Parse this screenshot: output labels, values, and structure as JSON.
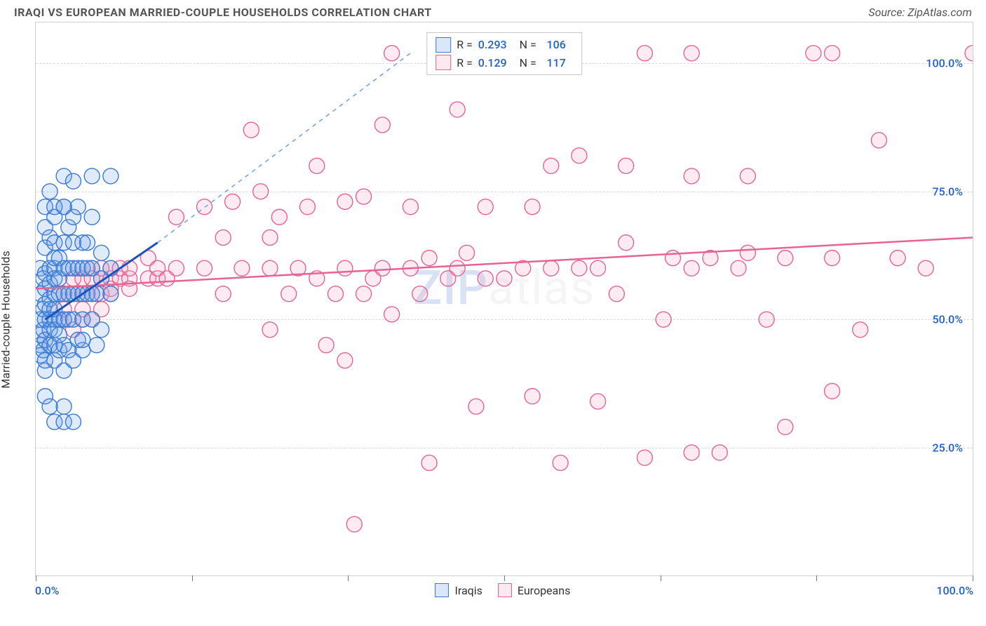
{
  "title": "IRAQI VS EUROPEAN MARRIED-COUPLE HOUSEHOLDS CORRELATION CHART",
  "source_label": "Source: ZipAtlas.com",
  "ylabel": "Married-couple Households",
  "watermark": {
    "prefix": "ZIP",
    "suffix": "atlas"
  },
  "chart": {
    "type": "scatter",
    "xlim": [
      0,
      100
    ],
    "ylim": [
      0,
      108
    ],
    "y_ticks": [
      25,
      50,
      75,
      100
    ],
    "y_tick_labels": [
      "25.0%",
      "50.0%",
      "75.0%",
      "100.0%"
    ],
    "x_ticks": [
      0,
      16.7,
      33.3,
      50,
      66.7,
      83.3,
      100
    ],
    "x_min_label": "0.0%",
    "x_max_label": "100.0%",
    "grid_color": "#d8d8d8",
    "border_color": "#d0d0d0",
    "background_color": "#ffffff",
    "marker_radius": 11,
    "marker_stroke_width": 1.4,
    "marker_fill_opacity": 0.22,
    "y_tick_color": "#2261c9",
    "x_label_color": "#2261c9"
  },
  "series": {
    "iraqis": {
      "label": "Iraqis",
      "color_stroke": "#3a7bd5",
      "color_fill": "#6fa0e8",
      "R": "0.293",
      "N": "106",
      "regression": {
        "x1": 1,
        "y1": 50,
        "x2": 13,
        "y2": 65,
        "dash_x2": 40,
        "dash_y2": 102
      },
      "points": [
        [
          0.5,
          47
        ],
        [
          0.5,
          50
        ],
        [
          0.5,
          55
        ],
        [
          0.5,
          60
        ],
        [
          0.5,
          45
        ],
        [
          0.5,
          43
        ],
        [
          0.8,
          52
        ],
        [
          0.8,
          58
        ],
        [
          0.8,
          48
        ],
        [
          0.8,
          44
        ],
        [
          1,
          50
        ],
        [
          1,
          53
        ],
        [
          1,
          56
        ],
        [
          1,
          59
        ],
        [
          1,
          46
        ],
        [
          1,
          40
        ],
        [
          1,
          64
        ],
        [
          1,
          68
        ],
        [
          1,
          35
        ],
        [
          1,
          42
        ],
        [
          1.5,
          50
        ],
        [
          1.5,
          54
        ],
        [
          1.5,
          57
        ],
        [
          1.5,
          60
        ],
        [
          1.5,
          45
        ],
        [
          1.5,
          52
        ],
        [
          1.5,
          48
        ],
        [
          1.5,
          66
        ],
        [
          2,
          50
        ],
        [
          2,
          55
        ],
        [
          2,
          60
        ],
        [
          2,
          65
        ],
        [
          2,
          48
        ],
        [
          2,
          45
        ],
        [
          2,
          70
        ],
        [
          2,
          58
        ],
        [
          2,
          52
        ],
        [
          2,
          42
        ],
        [
          2,
          62
        ],
        [
          2.5,
          55
        ],
        [
          2.5,
          50
        ],
        [
          2.5,
          58
        ],
        [
          2.5,
          62
        ],
        [
          2.5,
          44
        ],
        [
          2.5,
          47
        ],
        [
          3,
          50
        ],
        [
          3,
          55
        ],
        [
          3,
          60
        ],
        [
          3,
          65
        ],
        [
          3,
          72
        ],
        [
          3,
          40
        ],
        [
          3,
          33
        ],
        [
          3,
          45
        ],
        [
          3,
          78
        ],
        [
          3.5,
          55
        ],
        [
          3.5,
          60
        ],
        [
          3.5,
          50
        ],
        [
          3.5,
          68
        ],
        [
          3.5,
          44
        ],
        [
          4,
          55
        ],
        [
          4,
          60
        ],
        [
          4,
          50
        ],
        [
          4,
          65
        ],
        [
          4,
          70
        ],
        [
          4,
          42
        ],
        [
          4,
          77
        ],
        [
          4.5,
          55
        ],
        [
          4.5,
          60
        ],
        [
          4.5,
          72
        ],
        [
          4.5,
          46
        ],
        [
          5,
          55
        ],
        [
          5,
          60
        ],
        [
          5,
          65
        ],
        [
          5,
          50
        ],
        [
          5,
          44
        ],
        [
          5,
          46
        ],
        [
          5.5,
          60
        ],
        [
          5.5,
          55
        ],
        [
          5.5,
          65
        ],
        [
          6,
          60
        ],
        [
          6,
          55
        ],
        [
          6,
          70
        ],
        [
          6,
          50
        ],
        [
          6,
          78
        ],
        [
          6.5,
          55
        ],
        [
          6.5,
          45
        ],
        [
          7,
          58
        ],
        [
          7,
          63
        ],
        [
          7,
          48
        ],
        [
          8,
          60
        ],
        [
          8,
          55
        ],
        [
          8,
          78
        ],
        [
          2,
          30
        ],
        [
          3,
          30
        ],
        [
          4,
          30
        ],
        [
          1.5,
          33
        ],
        [
          1,
          72
        ],
        [
          2,
          72
        ],
        [
          3,
          72
        ],
        [
          1.5,
          75
        ]
      ]
    },
    "europeans": {
      "label": "Europeans",
      "color_stroke": "#e66395",
      "color_fill": "#f4a5c0",
      "R": "0.129",
      "N": "117",
      "regression": {
        "x1": 0,
        "y1": 56,
        "x2": 100,
        "y2": 66
      },
      "points": [
        [
          3,
          55
        ],
        [
          3,
          50
        ],
        [
          3,
          52
        ],
        [
          4,
          55
        ],
        [
          4,
          58
        ],
        [
          4,
          48
        ],
        [
          5,
          55
        ],
        [
          5,
          50
        ],
        [
          5,
          58
        ],
        [
          5,
          52
        ],
        [
          6,
          55
        ],
        [
          6,
          58
        ],
        [
          6,
          50
        ],
        [
          6,
          60
        ],
        [
          7,
          58
        ],
        [
          7,
          55
        ],
        [
          7,
          60
        ],
        [
          7,
          52
        ],
        [
          8,
          58
        ],
        [
          8,
          56
        ],
        [
          8,
          60
        ],
        [
          8,
          55
        ],
        [
          9,
          58
        ],
        [
          9,
          60
        ],
        [
          10,
          58
        ],
        [
          10,
          56
        ],
        [
          10,
          60
        ],
        [
          12,
          58
        ],
        [
          12,
          62
        ],
        [
          13,
          58
        ],
        [
          13,
          60
        ],
        [
          14,
          58
        ],
        [
          15,
          60
        ],
        [
          15,
          70
        ],
        [
          18,
          60
        ],
        [
          18,
          72
        ],
        [
          20,
          55
        ],
        [
          20,
          66
        ],
        [
          21,
          73
        ],
        [
          22,
          60
        ],
        [
          23,
          87
        ],
        [
          24,
          75
        ],
        [
          25,
          48
        ],
        [
          25,
          60
        ],
        [
          25,
          66
        ],
        [
          26,
          70
        ],
        [
          27,
          55
        ],
        [
          28,
          60
        ],
        [
          29,
          72
        ],
        [
          30,
          58
        ],
        [
          30,
          80
        ],
        [
          31,
          45
        ],
        [
          32,
          55
        ],
        [
          33,
          42
        ],
        [
          33,
          60
        ],
        [
          33,
          73
        ],
        [
          34,
          10
        ],
        [
          35,
          55
        ],
        [
          35,
          74
        ],
        [
          36,
          58
        ],
        [
          37,
          60
        ],
        [
          37,
          88
        ],
        [
          38,
          51
        ],
        [
          40,
          60
        ],
        [
          40,
          72
        ],
        [
          41,
          55
        ],
        [
          42,
          22
        ],
        [
          42,
          62
        ],
        [
          44,
          58
        ],
        [
          45,
          91
        ],
        [
          45,
          60
        ],
        [
          46,
          63
        ],
        [
          47,
          33
        ],
        [
          48,
          58
        ],
        [
          48,
          72
        ],
        [
          50,
          58
        ],
        [
          50,
          102
        ],
        [
          52,
          60
        ],
        [
          53,
          35
        ],
        [
          53,
          72
        ],
        [
          55,
          60
        ],
        [
          55,
          80
        ],
        [
          56,
          22
        ],
        [
          58,
          60
        ],
        [
          58,
          82
        ],
        [
          60,
          34
        ],
        [
          60,
          60
        ],
        [
          62,
          55
        ],
        [
          63,
          65
        ],
        [
          63,
          80
        ],
        [
          65,
          23
        ],
        [
          67,
          50
        ],
        [
          68,
          62
        ],
        [
          70,
          24
        ],
        [
          70,
          60
        ],
        [
          70,
          78
        ],
        [
          72,
          62
        ],
        [
          73,
          24
        ],
        [
          75,
          60
        ],
        [
          76,
          63
        ],
        [
          76,
          78
        ],
        [
          78,
          50
        ],
        [
          80,
          62
        ],
        [
          80,
          29
        ],
        [
          83,
          102
        ],
        [
          85,
          36
        ],
        [
          85,
          62
        ],
        [
          88,
          48
        ],
        [
          90,
          85
        ],
        [
          92,
          62
        ],
        [
          95,
          60
        ],
        [
          85,
          102
        ],
        [
          100,
          102
        ],
        [
          47,
          102
        ],
        [
          38,
          102
        ],
        [
          65,
          102
        ],
        [
          70,
          102
        ]
      ]
    }
  },
  "stats_box": {
    "rows": [
      {
        "swatch": "iraqis",
        "r_label": "R =",
        "r": "0.293",
        "n_label": "N =",
        "n": "106"
      },
      {
        "swatch": "europeans",
        "r_label": "R =",
        "r": "0.129",
        "n_label": "N =",
        "n": "117"
      }
    ]
  },
  "legend": [
    {
      "key": "iraqis"
    },
    {
      "key": "europeans"
    }
  ]
}
